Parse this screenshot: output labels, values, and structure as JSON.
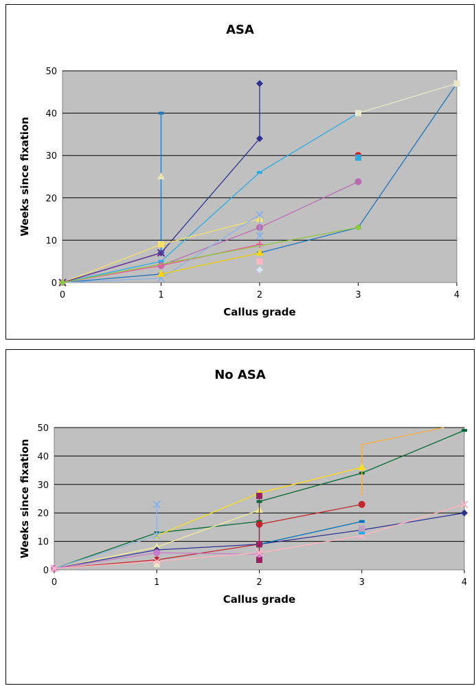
{
  "chart_data": [
    {
      "type": "line",
      "title": "ASA",
      "xlabel": "Callus grade",
      "ylabel": "Weeks since fixation",
      "xlim": [
        0,
        4
      ],
      "ylim": [
        0,
        50
      ],
      "xticks": [
        "0",
        "1",
        "2",
        "3",
        "4"
      ],
      "yticks": [
        "0",
        "10",
        "20",
        "30",
        "40",
        "50"
      ],
      "plot_bg": "#c0c0c0",
      "grid": true,
      "series": [
        {
          "color": "#2e3192",
          "marker": "diamond",
          "points": [
            [
              0,
              0
            ],
            [
              1,
              7
            ],
            [
              2,
              34
            ],
            [
              2,
              47
            ]
          ]
        },
        {
          "color": "#29abe2",
          "marker": "dash",
          "points": [
            [
              0,
              0
            ],
            [
              1,
              5
            ],
            [
              2,
              26
            ],
            [
              3,
              40
            ]
          ]
        },
        {
          "color": "#1b75bc",
          "marker": "dash",
          "points": [
            [
              0,
              0
            ],
            [
              1,
              2
            ],
            [
              2,
              7
            ],
            [
              3,
              13
            ],
            [
              4,
              47
            ]
          ]
        },
        {
          "color": "#1b75bc",
          "marker": "dash",
          "points": [
            [
              1,
              7
            ],
            [
              1,
              40
            ]
          ]
        },
        {
          "color": "#b96bb0",
          "marker": "circle",
          "points": [
            [
              0,
              0
            ],
            [
              1,
              4
            ],
            [
              2,
              13
            ],
            [
              3,
              23.8
            ]
          ]
        },
        {
          "color": "#f5e06b",
          "marker": "square",
          "points": [
            [
              0,
              0
            ],
            [
              1,
              9
            ],
            [
              2,
              15
            ]
          ]
        },
        {
          "color": "#ee5c9b",
          "marker": "plus",
          "points": [
            [
              0,
              0
            ],
            [
              1,
              4
            ],
            [
              2,
              9
            ]
          ]
        },
        {
          "color": "#8cb2e5",
          "marker": "cross",
          "points": [
            [
              0,
              0
            ],
            [
              1,
              1
            ],
            [
              2,
              16
            ],
            [
              2,
              11
            ]
          ]
        },
        {
          "color": "#662d91",
          "marker": "cross",
          "points": [
            [
              0,
              0
            ],
            [
              1,
              7
            ]
          ]
        },
        {
          "color": "#e6e3b8",
          "marker": "triangle",
          "points": [
            [
              1,
              25
            ]
          ]
        },
        {
          "color": "#ffd700",
          "marker": "triangle",
          "points": [
            [
              1,
              2
            ],
            [
              2,
              7
            ]
          ]
        },
        {
          "color": "#ffb6c1",
          "marker": "square",
          "points": [
            [
              2,
              5
            ]
          ]
        },
        {
          "color": "#d4e8f0",
          "marker": "diamond",
          "points": [
            [
              2,
              3
            ]
          ]
        },
        {
          "color": "#d7191c",
          "marker": "circle",
          "points": [
            [
              3,
              30
            ]
          ]
        },
        {
          "color": "#29abe2",
          "marker": "square",
          "points": [
            [
              3,
              29.5
            ]
          ]
        },
        {
          "color": "#e8e8c8",
          "marker": "square",
          "points": [
            [
              3,
              40
            ],
            [
              4,
              47
            ]
          ]
        },
        {
          "color": "#8dc63f",
          "marker": "diamond",
          "points": [
            [
              0,
              0
            ],
            [
              3,
              13
            ]
          ]
        }
      ]
    },
    {
      "type": "line",
      "title": "No ASA",
      "xlabel": "Callus grade",
      "ylabel": "Weeks since fixation",
      "xlim": [
        0,
        4
      ],
      "ylim": [
        0,
        50
      ],
      "xticks": [
        "0",
        "1",
        "2",
        "3",
        "4"
      ],
      "yticks": [
        "0",
        "10",
        "20",
        "30",
        "40",
        "50"
      ],
      "plot_bg": "#c0c0c0",
      "grid": true,
      "series": [
        {
          "color": "#006837",
          "marker": "dash",
          "points": [
            [
              0,
              0.5
            ],
            [
              1,
              13
            ],
            [
              2,
              17
            ],
            [
              2,
              24
            ],
            [
              3,
              34
            ],
            [
              4,
              49
            ]
          ]
        },
        {
          "color": "#fbb040",
          "marker": "none",
          "points": [
            [
              2,
              27
            ],
            [
              3,
              36
            ],
            [
              3,
              44
            ],
            [
              3.8,
              50
            ]
          ]
        },
        {
          "color": "#fbb040",
          "marker": "none",
          "points": [
            [
              3,
              36
            ],
            [
              3,
              26
            ]
          ]
        },
        {
          "color": "#f7e017",
          "marker": "triangle",
          "points": [
            [
              0,
              0.5
            ],
            [
              1,
              12
            ],
            [
              2,
              27
            ],
            [
              3,
              36
            ]
          ]
        },
        {
          "color": "#f2ef9a",
          "marker": "triangle",
          "points": [
            [
              0,
              0.5
            ],
            [
              1,
              8
            ],
            [
              2,
              21
            ]
          ]
        },
        {
          "color": "#c1272d",
          "marker": "circle",
          "points": [
            [
              0,
              0.5
            ],
            [
              1,
              3.5
            ],
            [
              2,
              9
            ],
            [
              2,
              16
            ],
            [
              3,
              23
            ]
          ]
        },
        {
          "color": "#2e3192",
          "marker": "diamond",
          "points": [
            [
              0,
              0.5
            ],
            [
              1,
              7
            ],
            [
              2,
              9
            ],
            [
              3,
              14
            ],
            [
              4,
              20
            ]
          ]
        },
        {
          "color": "#0071bc",
          "marker": "dash",
          "points": [
            [
              2,
              9
            ],
            [
              3,
              17
            ]
          ]
        },
        {
          "color": "#9e1f63",
          "marker": "square",
          "points": [
            [
              2,
              26
            ],
            [
              2,
              9
            ],
            [
              2,
              5
            ],
            [
              2,
              4
            ],
            [
              2,
              3.5
            ]
          ]
        },
        {
          "color": "#c77cc7",
          "marker": "circle",
          "points": [
            [
              0,
              0.5
            ],
            [
              1,
              6
            ],
            [
              2,
              5.5
            ]
          ]
        },
        {
          "color": "#8cb2e5",
          "marker": "cross",
          "points": [
            [
              1,
              23
            ],
            [
              1,
              12
            ],
            [
              0,
              0.5
            ]
          ]
        },
        {
          "color": "#e8e8c8",
          "marker": "square",
          "points": [
            [
              1,
              2
            ]
          ]
        },
        {
          "color": "#ffb6c1",
          "marker": "cross",
          "points": [
            [
              0,
              0.5
            ],
            [
              1,
              3
            ],
            [
              2,
              6
            ],
            [
              3,
              12
            ],
            [
              4,
              23
            ]
          ]
        },
        {
          "color": "#29abe2",
          "marker": "square",
          "points": [
            [
              3,
              13.5
            ]
          ]
        },
        {
          "color": "#c0a0c0",
          "marker": "square",
          "points": [
            [
              3,
              14.5
            ]
          ]
        }
      ]
    }
  ]
}
